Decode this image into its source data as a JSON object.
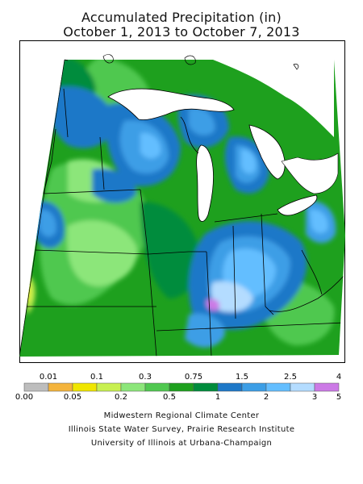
{
  "title_line1": "Accumulated Precipitation (in)",
  "title_line2": "October 1, 2013 to October 7, 2013",
  "legend": {
    "upper_labels": [
      "0.01",
      "0.1",
      "0.3",
      "0.75",
      "1.5",
      "2.5",
      "4"
    ],
    "lower_labels": [
      "0.00",
      "0.05",
      "0.2",
      "0.5",
      "1",
      "2",
      "3",
      "5"
    ],
    "colors": [
      "#bdbdbd",
      "#f4b43c",
      "#f0e600",
      "#c8f050",
      "#8ce67a",
      "#50c850",
      "#1ea01e",
      "#008c3c",
      "#1e78c8",
      "#3c9ee6",
      "#64beff",
      "#b4dcff",
      "#cc7ae6"
    ]
  },
  "credits": [
    "Midwestern Regional Climate Center",
    "Illinois State Water Survey, Prairie Research Institute",
    "University of Illinois at Urbana-Champaign"
  ]
}
